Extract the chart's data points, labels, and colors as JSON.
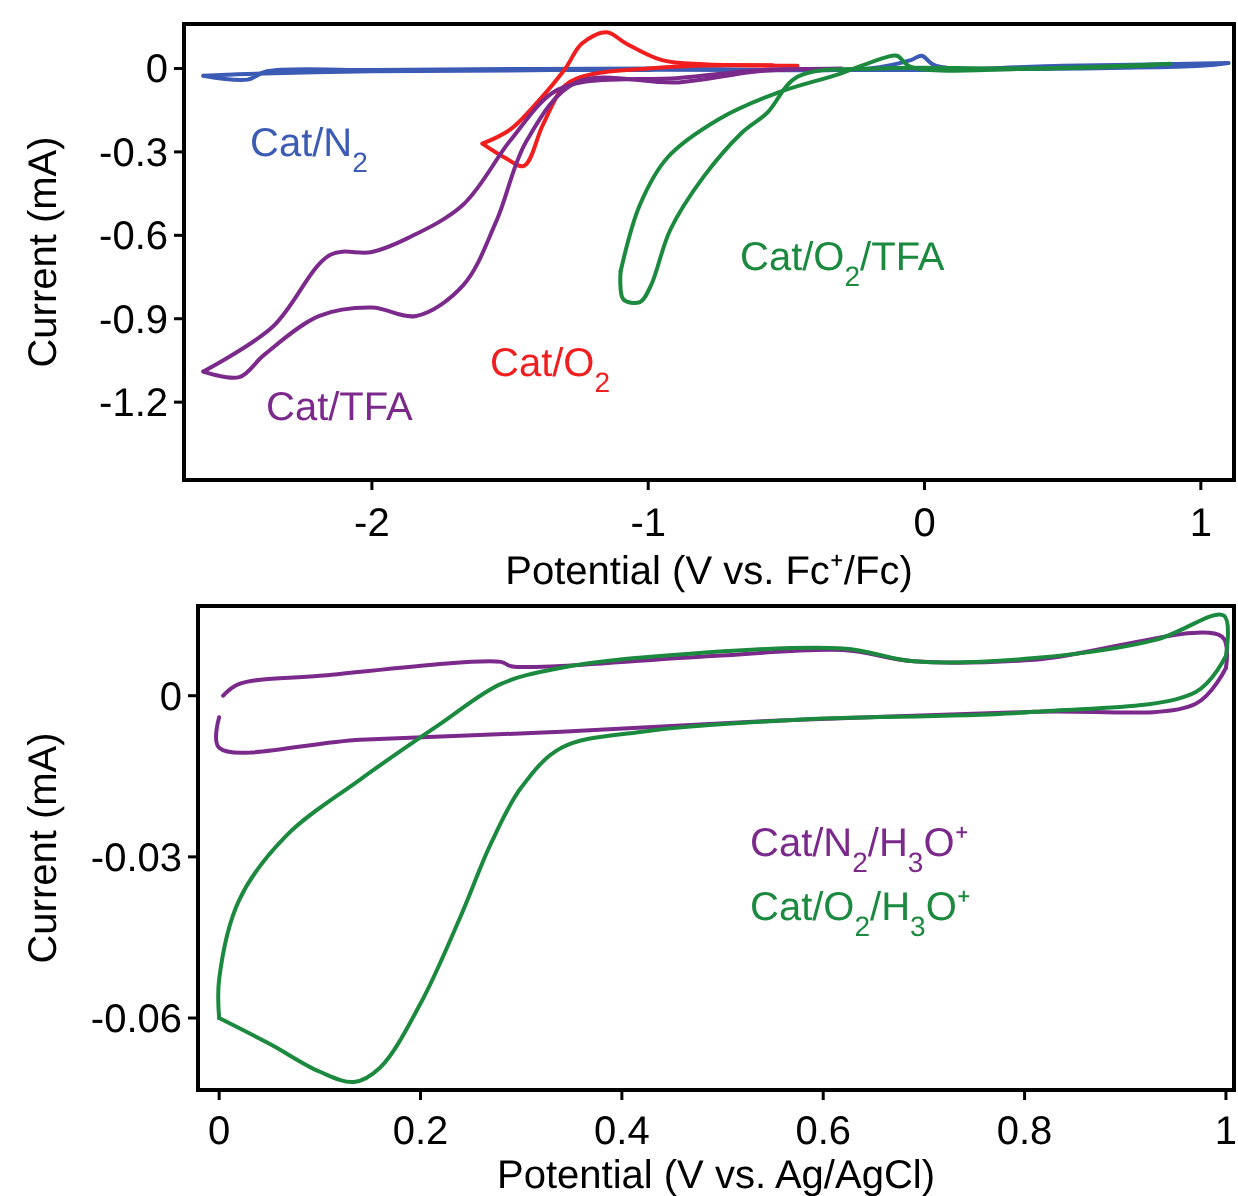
{
  "chart_data": [
    {
      "type": "line",
      "xlabel": "Potential (V vs. Fc⁺/Fc)",
      "ylabel": "Current (mA)",
      "xlim": [
        -2.68,
        1.12
      ],
      "ylim": [
        -1.48,
        0.16
      ],
      "xticks": [
        -2,
        -1,
        0,
        1
      ],
      "yticks": [
        0,
        -0.3,
        -0.6,
        -0.9,
        -1.2
      ],
      "grid": false,
      "legend": false,
      "marker": "none",
      "line_style": "solid",
      "series": [
        {
          "name": "Cat/N$_{2}$",
          "color": "#3b5bb5",
          "x": [
            -2.61,
            -2.45,
            -2.38,
            -2,
            -1,
            -0.2,
            -0.05,
            -0.01,
            0.04,
            0.5,
            1.1
          ],
          "values": [
            -0.026,
            -0.04,
            -0.01,
            -0.005,
            0,
            0,
            0.03,
            0.046,
            0.01,
            0.01,
            0.02
          ]
        },
        {
          "color": "#3b5bb5",
          "x": [
            1.1,
            1.0,
            0,
            -1,
            -2,
            -2.45,
            -2.61
          ],
          "values": [
            0.02,
            0.01,
            -0.005,
            -0.005,
            -0.01,
            -0.02,
            -0.026
          ]
        },
        {
          "name": "Cat/O$_{2}$",
          "color": "#f01e1e",
          "x": [
            -0.46,
            -0.83,
            -1.0,
            -1.2,
            -1.3,
            -1.38,
            -1.45,
            -1.52,
            -1.6
          ],
          "values": [
            0.01,
            0.01,
            0,
            -0.02,
            -0.06,
            -0.2,
            -0.35,
            -0.32,
            -0.27
          ]
        },
        {
          "color": "#f01e1e",
          "x": [
            -1.6,
            -1.5,
            -1.4,
            -1.3,
            -1.24,
            -1.15,
            -1.08,
            -0.95,
            -0.8,
            -0.55
          ],
          "values": [
            -0.27,
            -0.22,
            -0.12,
            0,
            0.09,
            0.13,
            0.09,
            0.03,
            0.015,
            0.012
          ]
        },
        {
          "name": "Cat/TFA",
          "color": "#7b2a8c",
          "x": [
            -0.3,
            -0.6,
            -0.89,
            -1.26,
            -1.44,
            -1.55,
            -1.67,
            -1.84,
            -2.0,
            -2.19,
            -2.39,
            -2.48,
            -2.61
          ],
          "values": [
            0,
            -0.01,
            -0.05,
            -0.05,
            -0.26,
            -0.55,
            -0.78,
            -0.89,
            -0.86,
            -0.89,
            -1.03,
            -1.11,
            -1.09
          ]
        },
        {
          "color": "#7b2a8c",
          "x": [
            -2.61,
            -2.36,
            -2.15,
            -2.0,
            -1.87,
            -1.67,
            -1.5,
            -1.35,
            -1.24,
            -0.89,
            -0.6,
            -0.38
          ],
          "values": [
            -1.09,
            -0.93,
            -0.67,
            -0.66,
            -0.61,
            -0.49,
            -0.26,
            -0.09,
            -0.05,
            -0.034,
            -0.006,
            -0.002
          ]
        },
        {
          "name": "Cat/O$_{2}$/TFA",
          "color": "#1b8a3e",
          "x": [
            0.89,
            0.41,
            -0.17,
            -0.46,
            -0.57,
            -0.66,
            -0.8,
            -0.92,
            -0.99,
            -1.03,
            -1.09,
            -1.1
          ],
          "values": [
            0.017,
            0,
            0,
            -0.03,
            -0.16,
            -0.23,
            -0.39,
            -0.58,
            -0.78,
            -0.84,
            -0.83,
            -0.73
          ]
        },
        {
          "color": "#1b8a3e",
          "x": [
            -1.1,
            -1.03,
            -0.93,
            -0.74,
            -0.54,
            -0.31,
            -0.14,
            -0.1,
            -0.05,
            0.41,
            0.83
          ],
          "values": [
            -0.73,
            -0.49,
            -0.32,
            -0.18,
            -0.09,
            -0.02,
            0.04,
            0.046,
            0.006,
            0,
            0.012
          ]
        }
      ]
    },
    {
      "type": "line",
      "xlabel": "Potential (V vs. Ag/AgCl)",
      "ylabel": "Current (mA)",
      "xlim": [
        -0.021,
        1.008
      ],
      "ylim": [
        -0.0734,
        0.0167
      ],
      "xticks": [
        0,
        0.2,
        0.4,
        0.6,
        0.8,
        1
      ],
      "yticks": [
        0,
        -0.03,
        -0.06
      ],
      "grid": false,
      "legend": false,
      "marker": "none",
      "line_style": "solid",
      "series": [
        {
          "name": "Cat/N$_{2}$/H$_{3}$O⁺",
          "color": "#7b2a8c",
          "x": [
            0.004,
            0.02,
            0.1,
            0.28,
            0.29,
            0.49,
            0.62,
            0.69,
            0.81,
            0.996,
            1.0
          ],
          "values": [
            0,
            0.0022,
            0.0037,
            0.0063,
            0.0055,
            0.0074,
            0.0085,
            0.0064,
            0.0067,
            0.011,
            0.0052
          ]
        },
        {
          "color": "#7b2a8c",
          "x": [
            1.0,
            0.97,
            0.81,
            0.57,
            0.34,
            0.14,
            0,
            0
          ],
          "values": [
            0.0052,
            -0.0015,
            -0.003,
            -0.0045,
            -0.0067,
            -0.0082,
            -0.0097,
            -0.004
          ]
        },
        {
          "name": "Cat/O$_{2}$/H$_{3}$O⁺",
          "color": "#1b8a3e",
          "x": [
            0,
            0,
            0.02,
            0.067,
            0.14,
            0.22,
            0.28,
            0.34,
            0.42,
            0.62,
            0.69,
            0.81,
            0.93,
            0.998,
            1.0
          ],
          "values": [
            -0.06,
            -0.0528,
            -0.038,
            -0.026,
            -0.0156,
            -0.0052,
            0.0022,
            0.0052,
            0.0071,
            0.0088,
            0.0064,
            0.007,
            0.0104,
            0.0149,
            0.0074
          ]
        },
        {
          "color": "#1b8a3e",
          "x": [
            1.0,
            0.97,
            0.81,
            0.57,
            0.42,
            0.34,
            0.3,
            0.27,
            0.24,
            0.2,
            0.16,
            0.134,
            0.1,
            0.05,
            0
          ],
          "values": [
            0.0074,
            0.0007,
            -0.003,
            -0.0045,
            -0.0067,
            -0.0097,
            -0.0171,
            -0.0275,
            -0.041,
            -0.0573,
            -0.0692,
            -0.0719,
            -0.07,
            -0.0648,
            -0.06
          ]
        }
      ]
    }
  ]
}
